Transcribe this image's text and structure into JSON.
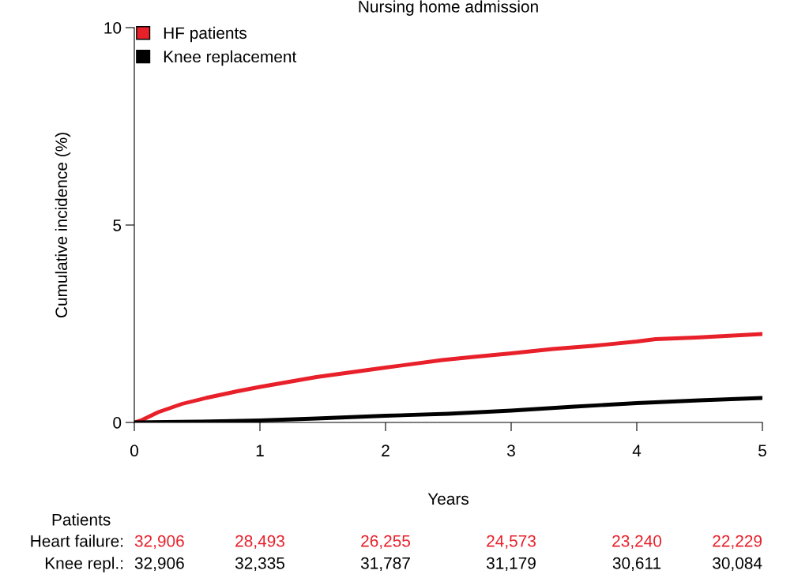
{
  "chart_data": {
    "type": "line",
    "title": "Nursing home admission",
    "xlabel": "Years",
    "ylabel": "Cumulative incidence (%)",
    "xlim": [
      0,
      5
    ],
    "xticks": [
      0,
      1,
      2,
      3,
      4,
      5
    ],
    "ylim": [
      0,
      10
    ],
    "yticks": [
      0,
      5,
      10
    ],
    "grid": false,
    "legend": "top left",
    "line_style": "solid",
    "series": [
      {
        "name": "HF patients",
        "color": "#e8202a",
        "x": [
          0,
          0.06,
          0.19,
          0.38,
          0.57,
          0.82,
          1.0,
          1.45,
          2.0,
          2.45,
          2.7,
          3.0,
          3.33,
          3.65,
          4.0,
          4.15,
          4.47,
          5.0
        ],
        "values": [
          0,
          0.06,
          0.26,
          0.47,
          0.62,
          0.79,
          0.9,
          1.15,
          1.39,
          1.58,
          1.66,
          1.75,
          1.86,
          1.94,
          2.05,
          2.11,
          2.15,
          2.24
        ]
      },
      {
        "name": "Knee replacement",
        "color": "#000000",
        "x": [
          0,
          0.5,
          1.0,
          1.45,
          2.0,
          2.5,
          3.0,
          3.5,
          4.0,
          4.5,
          5.0
        ],
        "values": [
          0,
          0.02,
          0.05,
          0.1,
          0.17,
          0.22,
          0.3,
          0.4,
          0.49,
          0.56,
          0.62
        ]
      }
    ],
    "annotations": [
      "Patients",
      "Heart failure:",
      "32,906",
      "28,493",
      "26,255",
      "24,573",
      "23,240",
      "22,229",
      "Knee repl.:",
      "32,906",
      "32,335",
      "31,787",
      "31,179",
      "30,611",
      "30,084"
    ]
  }
}
